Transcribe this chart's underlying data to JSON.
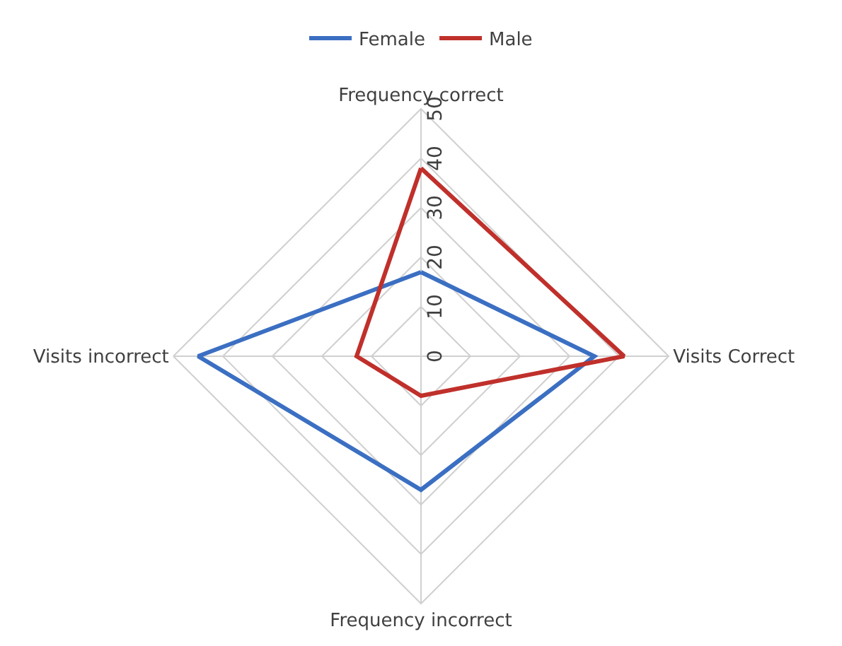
{
  "chart_data": {
    "type": "radar",
    "categories": [
      "Frequency correct",
      "Visits Correct",
      "Frequency incorrect",
      "Visits incorrect"
    ],
    "series": [
      {
        "name": "Female",
        "color": "#3b6fc2",
        "values": [
          17,
          35,
          27,
          45
        ]
      },
      {
        "name": "Male",
        "color": "#c0302b",
        "values": [
          38,
          41,
          8,
          13
        ]
      }
    ],
    "ylim": [
      0,
      50
    ],
    "yticks": [
      0,
      10,
      20,
      30,
      40,
      50
    ],
    "grid": true,
    "legend": "top",
    "marker": "none",
    "line_style": "solid"
  }
}
